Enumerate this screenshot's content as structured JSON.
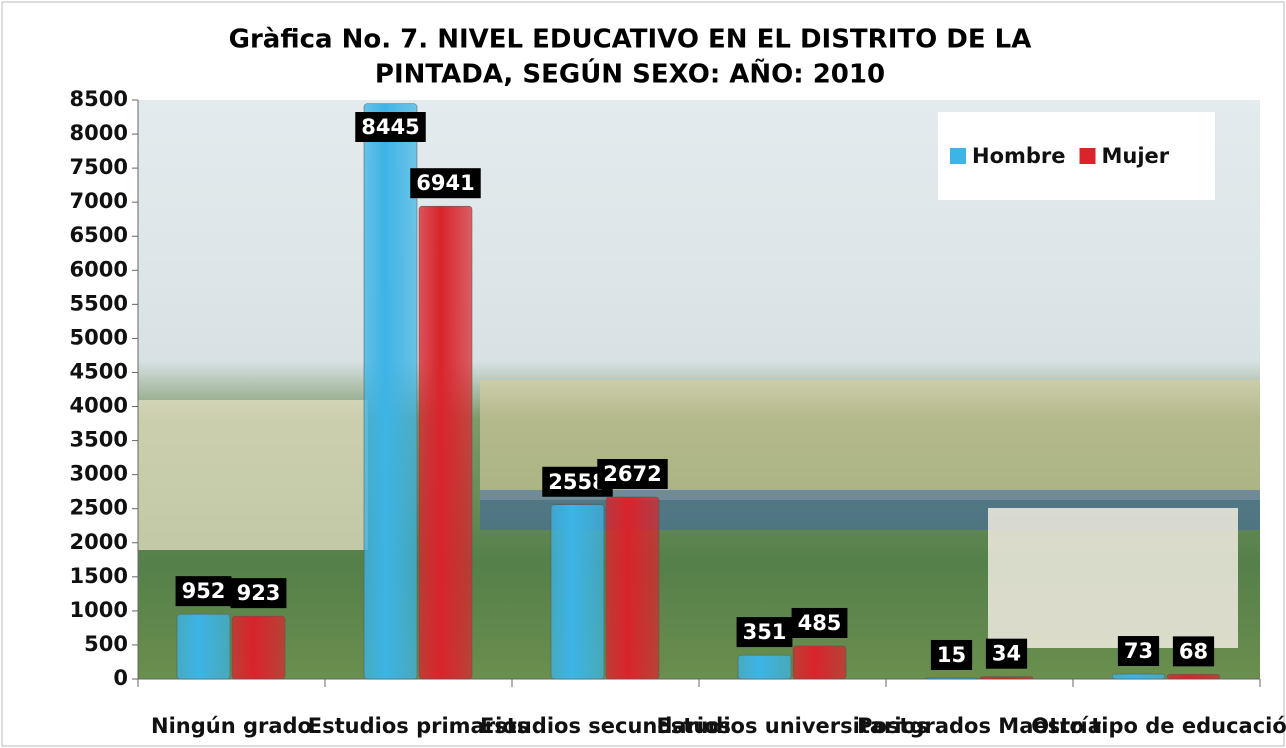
{
  "chart_data": {
    "type": "bar",
    "title": [
      "Gràfica No. 7.   NIVEL EDUCATIVO EN EL DISTRITO DE LA",
      "PINTADA, SEGÚN SEXO: AÑO: 2010"
    ],
    "categories": [
      "Ningún grado",
      "Estudios primarios",
      "Estudios secundarios",
      "Estudios universitarios",
      "Postgrados Maestría",
      "Otro tipo de educación"
    ],
    "series": [
      {
        "name": "Hombre",
        "color": "#3cb4e6",
        "values": [
          952,
          8445,
          2558,
          351,
          15,
          73
        ]
      },
      {
        "name": "Mujer",
        "color": "#d9242c",
        "values": [
          923,
          6941,
          2672,
          485,
          34,
          68
        ]
      }
    ],
    "ylim": [
      0,
      8500
    ],
    "yticks": [
      0,
      500,
      1000,
      1500,
      2000,
      2500,
      3000,
      3500,
      4000,
      4500,
      5000,
      5500,
      6000,
      6500,
      7000,
      7500,
      8000,
      8500
    ],
    "legend": "top-right"
  }
}
